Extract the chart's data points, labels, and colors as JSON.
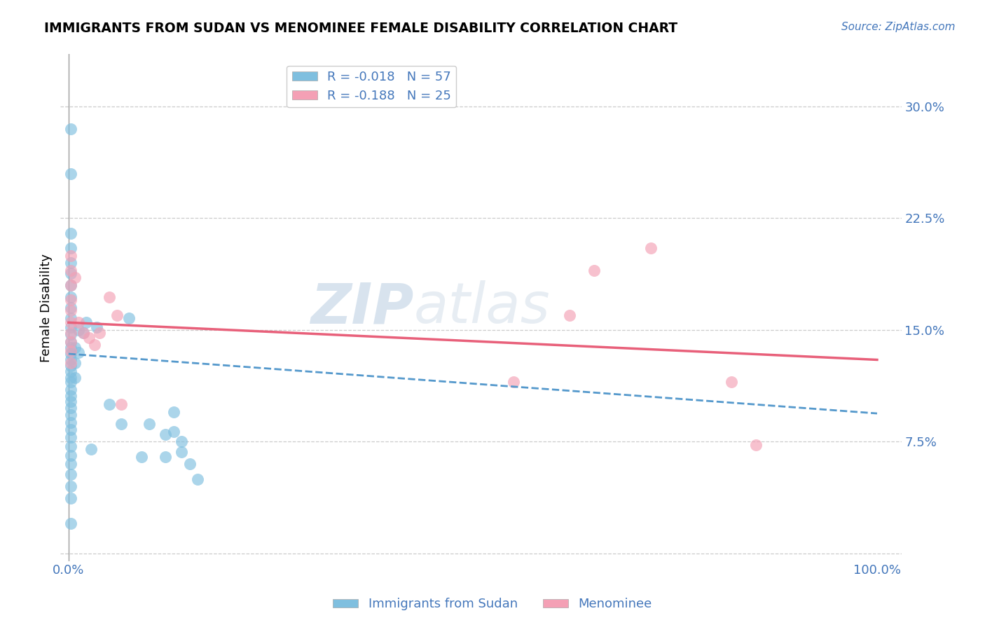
{
  "title": "IMMIGRANTS FROM SUDAN VS MENOMINEE FEMALE DISABILITY CORRELATION CHART",
  "source": "Source: ZipAtlas.com",
  "ylabel": "Female Disability",
  "yticks": [
    0.0,
    0.075,
    0.15,
    0.225,
    0.3
  ],
  "ytick_labels": [
    "",
    "7.5%",
    "15.0%",
    "22.5%",
    "30.0%"
  ],
  "xlim": [
    -0.01,
    1.03
  ],
  "ylim": [
    -0.005,
    0.335
  ],
  "legend_label1": "R = -0.018   N = 57",
  "legend_label2": "R = -0.188   N = 25",
  "color_blue": "#7fbfdf",
  "color_pink": "#f4a0b5",
  "color_blue_line": "#5599cc",
  "color_pink_line": "#e8607a",
  "color_blue_text": "#4477bb",
  "watermark_zip": "ZIP",
  "watermark_atlas": "atlas",
  "blue_scatter_x": [
    0.003,
    0.003,
    0.003,
    0.003,
    0.003,
    0.003,
    0.003,
    0.003,
    0.003,
    0.003,
    0.003,
    0.003,
    0.003,
    0.003,
    0.003,
    0.003,
    0.003,
    0.003,
    0.003,
    0.003,
    0.003,
    0.003,
    0.003,
    0.003,
    0.003,
    0.003,
    0.003,
    0.003,
    0.003,
    0.003,
    0.003,
    0.003,
    0.003,
    0.003,
    0.003,
    0.008,
    0.008,
    0.008,
    0.012,
    0.012,
    0.018,
    0.022,
    0.028,
    0.035,
    0.05,
    0.065,
    0.075,
    0.09,
    0.1,
    0.12,
    0.13,
    0.12,
    0.13,
    0.14,
    0.14,
    0.15,
    0.16
  ],
  "blue_scatter_y": [
    0.285,
    0.255,
    0.215,
    0.205,
    0.195,
    0.188,
    0.18,
    0.172,
    0.165,
    0.158,
    0.152,
    0.147,
    0.142,
    0.138,
    0.134,
    0.13,
    0.126,
    0.122,
    0.118,
    0.115,
    0.11,
    0.106,
    0.102,
    0.098,
    0.093,
    0.088,
    0.083,
    0.078,
    0.072,
    0.066,
    0.06,
    0.053,
    0.045,
    0.037,
    0.02,
    0.138,
    0.128,
    0.118,
    0.15,
    0.135,
    0.148,
    0.155,
    0.07,
    0.152,
    0.1,
    0.087,
    0.158,
    0.065,
    0.087,
    0.08,
    0.095,
    0.065,
    0.082,
    0.075,
    0.068,
    0.06,
    0.05
  ],
  "pink_scatter_x": [
    0.003,
    0.003,
    0.003,
    0.003,
    0.003,
    0.003,
    0.003,
    0.003,
    0.003,
    0.003,
    0.008,
    0.012,
    0.018,
    0.025,
    0.032,
    0.038,
    0.05,
    0.06,
    0.065,
    0.55,
    0.62,
    0.65,
    0.72,
    0.82,
    0.85
  ],
  "pink_scatter_y": [
    0.2,
    0.19,
    0.18,
    0.17,
    0.163,
    0.155,
    0.148,
    0.142,
    0.136,
    0.128,
    0.185,
    0.155,
    0.148,
    0.145,
    0.14,
    0.148,
    0.172,
    0.16,
    0.1,
    0.115,
    0.16,
    0.19,
    0.205,
    0.115,
    0.073
  ],
  "blue_line_x": [
    0.0,
    1.0
  ],
  "blue_line_y": [
    0.134,
    0.094
  ],
  "pink_line_x": [
    0.0,
    1.0
  ],
  "pink_line_y": [
    0.155,
    0.13
  ]
}
